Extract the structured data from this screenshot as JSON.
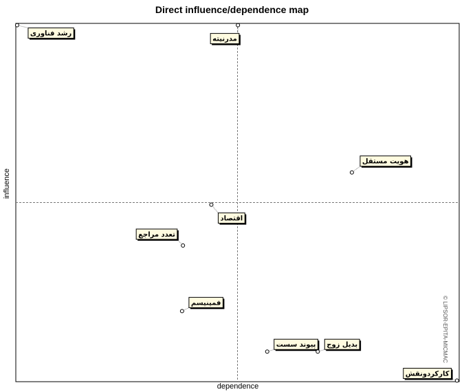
{
  "chart_data": {
    "type": "scatter",
    "title": "Direct influence/dependence map",
    "xlabel": "dependence",
    "ylabel": "influence",
    "xlim": [
      0,
      100
    ],
    "ylim": [
      0,
      100
    ],
    "x_divider": 50,
    "y_divider": 50,
    "grid": false,
    "points": [
      {
        "label": "رشد فناوری",
        "x": 0.3,
        "y": 99.5
      },
      {
        "label": "مدرنیته",
        "x": 50.1,
        "y": 99.5
      },
      {
        "label": "هویت مستقل",
        "x": 75.8,
        "y": 58.4
      },
      {
        "label": "اقتصاد",
        "x": 44.1,
        "y": 49.4
      },
      {
        "label": "تعدد مراجع",
        "x": 37.7,
        "y": 38.0
      },
      {
        "label": "فمینیسم",
        "x": 37.5,
        "y": 19.7
      },
      {
        "label": "پیوند سست",
        "x": 56.7,
        "y": 8.4
      },
      {
        "label": "بدیل زوج",
        "x": 68.1,
        "y": 8.4
      },
      {
        "label": "کارکردونقش",
        "x": 99.5,
        "y": 0.3
      }
    ]
  },
  "watermark": "© LIPSOR-EPITA-MICMAC"
}
